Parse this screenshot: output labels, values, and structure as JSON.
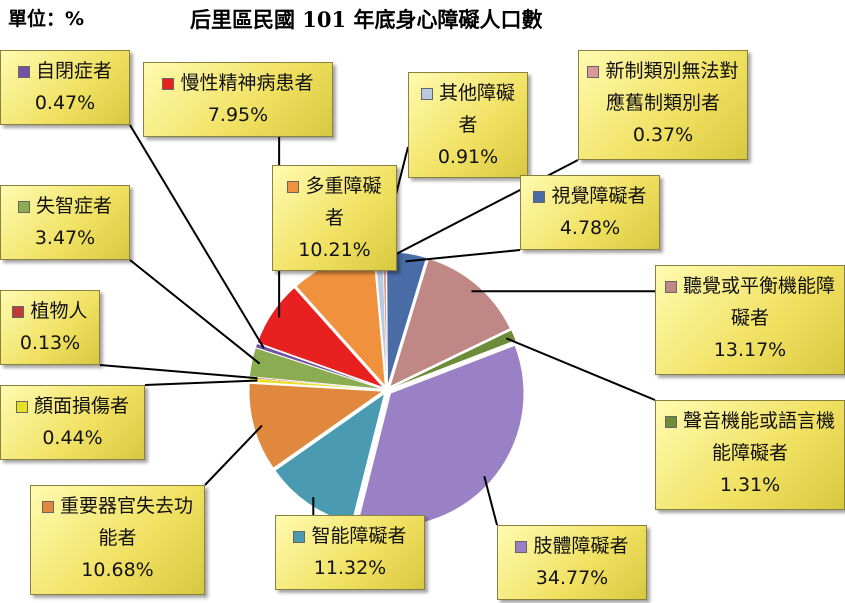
{
  "chart_data": {
    "type": "pie",
    "title": "后里區民國 101 年底身心障礙人口數",
    "unit_label": "單位：%",
    "categories": [
      "其他障礙者",
      "新制類別無法對應舊制類別者",
      "視覺障礙者",
      "聽覺或平衡機能障礙者",
      "聲音機能或語言機能障礙者",
      "肢體障礙者",
      "智能障礙者",
      "重要器官失去功能者",
      "顏面損傷者",
      "植物人",
      "失智症者",
      "自閉症者",
      "慢性精神病患者",
      "多重障礙者"
    ],
    "values": [
      0.91,
      0.37,
      4.78,
      13.17,
      1.31,
      34.77,
      11.32,
      10.68,
      0.44,
      0.13,
      3.47,
      0.47,
      7.95,
      10.21
    ],
    "value_labels": [
      "0.91%",
      "0.37%",
      "4.78%",
      "13.17%",
      "1.31%",
      "34.77%",
      "11.32%",
      "10.68%",
      "0.44%",
      "0.13%",
      "3.47%",
      "0.47%",
      "7.95%",
      "10.21%"
    ],
    "colors": [
      "#b9c9e2",
      "#d89a98",
      "#4a6ca6",
      "#c08884",
      "#6c8c3a",
      "#9a80c4",
      "#4a9ab2",
      "#e0883e",
      "#e8e020",
      "#c03838",
      "#8cac52",
      "#7252a2",
      "#e82020",
      "#f0913e"
    ]
  }
}
